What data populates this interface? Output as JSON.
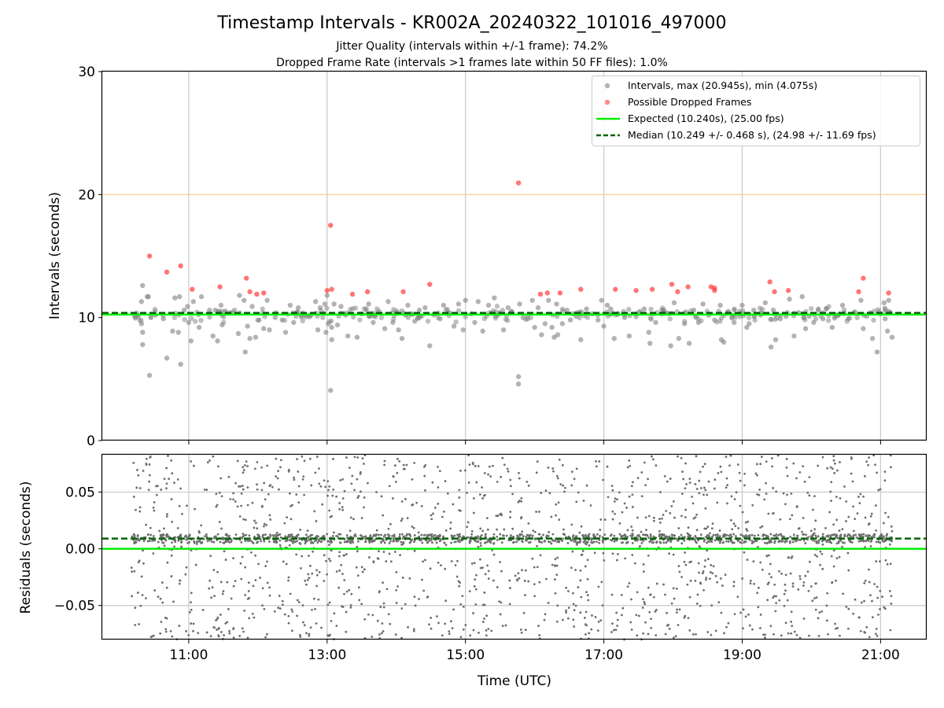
{
  "figure": {
    "title": "Timestamp Intervals - KR002A_20240322_101016_497000",
    "subtitle_line1": "Jitter Quality (intervals within +/-1 frame): 74.2%",
    "subtitle_line2": "Dropped Frame Rate (intervals >1 frames late within 50 FF files): 1.0%"
  },
  "chart_data": [
    {
      "type": "scatter",
      "panel": "intervals",
      "ylabel": "Intervals (seconds)",
      "xlabel": "",
      "xlim": [
        "09:45",
        "21:40"
      ],
      "ylim": [
        0,
        30
      ],
      "yticks": [
        0,
        10,
        20,
        30
      ],
      "ytick_labels": [
        "0",
        "10",
        "20",
        "30"
      ],
      "xticks": [
        "11:00",
        "13:00",
        "15:00",
        "17:00",
        "19:00",
        "21:00"
      ],
      "grid": "vertical",
      "legend": "top-right",
      "colors": {
        "intervals": "#808080",
        "dropped": "#ff3b3b",
        "expected": "#00ee00",
        "median": "#006400",
        "threshold": "#ffcc77"
      },
      "reference_lines": {
        "expected": 10.24,
        "median": 10.249,
        "threshold": 20.0
      },
      "legend_entries": [
        "Intervals, max (20.945s), min (4.075s)",
        "Possible Dropped Frames",
        "Expected (10.240s), (25.00 fps)",
        "Median (10.249 +/- 0.468 s), (24.98 +/- 11.69 fps)"
      ],
      "series": [
        {
          "name": "Intervals, max (20.945s), min (4.075s)",
          "points": [
            [
              "10:20",
              12.6
            ],
            [
              "10:19",
              11.3
            ],
            [
              "10:19",
              9.5
            ],
            [
              "10:20",
              8.8
            ],
            [
              "10:20",
              7.8
            ],
            [
              "10:24",
              11.7
            ],
            [
              "10:25",
              11.7
            ],
            [
              "10:26",
              5.3
            ],
            [
              "10:31",
              10.2
            ],
            [
              "10:38",
              9.9
            ],
            [
              "10:41",
              6.7
            ],
            [
              "10:46",
              8.9
            ],
            [
              "10:48",
              11.6
            ],
            [
              "10:51",
              8.8
            ],
            [
              "10:52",
              11.7
            ],
            [
              "10:53",
              6.2
            ],
            [
              "10:56",
              10.6
            ],
            [
              "10:59",
              10.9
            ],
            [
              "11:00",
              9.6
            ],
            [
              "11:02",
              8.1
            ],
            [
              "11:04",
              11.3
            ],
            [
              "11:09",
              9.2
            ],
            [
              "11:11",
              11.7
            ],
            [
              "11:18",
              10.6
            ],
            [
              "11:21",
              8.5
            ],
            [
              "11:23",
              10.6
            ],
            [
              "11:25",
              8.1
            ],
            [
              "11:28",
              11.0
            ],
            [
              "11:29",
              9.4
            ],
            [
              "11:36",
              10.4
            ],
            [
              "11:43",
              8.7
            ],
            [
              "11:44",
              11.8
            ],
            [
              "11:48",
              11.4
            ],
            [
              "11:49",
              7.2
            ],
            [
              "11:51",
              9.3
            ],
            [
              "11:53",
              8.3
            ],
            [
              "11:55",
              10.9
            ],
            [
              "11:58",
              8.4
            ],
            [
              "12:01",
              9.8
            ],
            [
              "12:05",
              9.1
            ],
            [
              "12:08",
              11.4
            ],
            [
              "12:10",
              9.0
            ],
            [
              "12:15",
              10.0
            ],
            [
              "12:21",
              9.8
            ],
            [
              "12:24",
              8.8
            ],
            [
              "12:28",
              11.0
            ],
            [
              "12:31",
              9.6
            ],
            [
              "12:35",
              10.8
            ],
            [
              "12:41",
              10.2
            ],
            [
              "12:46",
              10.2
            ],
            [
              "12:50",
              11.3
            ],
            [
              "12:52",
              9.0
            ],
            [
              "12:54",
              10.8
            ],
            [
              "12:58",
              11.1
            ],
            [
              "12:59",
              8.8
            ],
            [
              "13:00",
              11.8
            ],
            [
              "13:01",
              9.5
            ],
            [
              "13:03",
              4.075
            ],
            [
              "13:04",
              8.2
            ],
            [
              "13:04",
              9.2
            ],
            [
              "13:06",
              11.1
            ],
            [
              "13:09",
              9.4
            ],
            [
              "13:12",
              10.9
            ],
            [
              "13:16",
              10.2
            ],
            [
              "13:18",
              8.5
            ],
            [
              "13:26",
              8.4
            ],
            [
              "13:30",
              10.3
            ],
            [
              "13:34",
              10.7
            ],
            [
              "13:36",
              11.1
            ],
            [
              "13:40",
              9.6
            ],
            [
              "13:45",
              10.5
            ],
            [
              "13:50",
              9.1
            ],
            [
              "13:53",
              11.3
            ],
            [
              "13:57",
              9.6
            ],
            [
              "14:00",
              10.4
            ],
            [
              "14:02",
              9.0
            ],
            [
              "14:05",
              8.3
            ],
            [
              "14:08",
              10.2
            ],
            [
              "14:10",
              11.0
            ],
            [
              "14:13",
              10.3
            ],
            [
              "14:16",
              9.7
            ],
            [
              "14:20",
              10.6
            ],
            [
              "14:25",
              10.8
            ],
            [
              "14:29",
              7.7
            ],
            [
              "14:33",
              10.3
            ],
            [
              "14:38",
              9.9
            ],
            [
              "14:41",
              11.0
            ],
            [
              "14:45",
              10.4
            ],
            [
              "14:50",
              9.3
            ],
            [
              "14:54",
              11.1
            ],
            [
              "14:58",
              9.0
            ],
            [
              "15:00",
              11.4
            ],
            [
              "15:05",
              10.3
            ],
            [
              "15:08",
              9.6
            ],
            [
              "15:11",
              11.3
            ],
            [
              "15:15",
              8.9
            ],
            [
              "15:20",
              11.0
            ],
            [
              "15:25",
              11.6
            ],
            [
              "15:28",
              10.2
            ],
            [
              "15:33",
              9.0
            ],
            [
              "15:37",
              10.8
            ],
            [
              "15:40",
              10.5
            ],
            [
              "15:46",
              5.2
            ],
            [
              "15:46",
              4.6
            ],
            [
              "15:47",
              11.1
            ],
            [
              "15:50",
              10.0
            ],
            [
              "15:54",
              9.9
            ],
            [
              "15:58",
              11.4
            ],
            [
              "16:00",
              9.2
            ],
            [
              "16:03",
              10.8
            ],
            [
              "16:06",
              8.6
            ],
            [
              "16:09",
              9.5
            ],
            [
              "16:12",
              11.4
            ],
            [
              "16:15",
              9.2
            ],
            [
              "16:17",
              8.4
            ],
            [
              "16:19",
              11.1
            ],
            [
              "16:20",
              8.6
            ],
            [
              "16:24",
              9.5
            ],
            [
              "16:28",
              10.6
            ],
            [
              "16:31",
              9.8
            ],
            [
              "16:36",
              10.1
            ],
            [
              "16:40",
              8.2
            ],
            [
              "16:45",
              10.7
            ],
            [
              "16:50",
              10.3
            ],
            [
              "16:55",
              9.8
            ],
            [
              "16:58",
              11.4
            ],
            [
              "17:00",
              9.3
            ],
            [
              "17:03",
              11.0
            ],
            [
              "17:06",
              10.7
            ],
            [
              "17:09",
              8.3
            ],
            [
              "17:12",
              10.3
            ],
            [
              "17:18",
              10.0
            ],
            [
              "17:22",
              8.5
            ],
            [
              "17:28",
              10.3
            ],
            [
              "17:35",
              10.7
            ],
            [
              "17:39",
              8.8
            ],
            [
              "17:40",
              7.9
            ],
            [
              "17:45",
              9.6
            ],
            [
              "17:52",
              10.6
            ],
            [
              "17:58",
              7.7
            ],
            [
              "18:01",
              11.2
            ],
            [
              "18:05",
              8.3
            ],
            [
              "18:10",
              9.5
            ],
            [
              "18:14",
              7.9
            ],
            [
              "18:18",
              10.6
            ],
            [
              "18:22",
              9.6
            ],
            [
              "18:26",
              11.1
            ],
            [
              "18:31",
              10.2
            ],
            [
              "18:36",
              9.8
            ],
            [
              "18:41",
              11.0
            ],
            [
              "18:42",
              8.2
            ],
            [
              "18:44",
              8.0
            ],
            [
              "18:48",
              10.5
            ],
            [
              "18:53",
              9.6
            ],
            [
              "18:58",
              10.3
            ],
            [
              "19:00",
              11.0
            ],
            [
              "19:04",
              9.2
            ],
            [
              "19:06",
              9.5
            ],
            [
              "19:10",
              10.6
            ],
            [
              "19:16",
              10.2
            ],
            [
              "19:20",
              11.2
            ],
            [
              "19:25",
              7.6
            ],
            [
              "19:27",
              10.6
            ],
            [
              "19:29",
              8.2
            ],
            [
              "19:33",
              9.9
            ],
            [
              "19:38",
              10.1
            ],
            [
              "19:41",
              11.5
            ],
            [
              "19:45",
              8.5
            ],
            [
              "19:49",
              10.4
            ],
            [
              "19:52",
              11.7
            ],
            [
              "19:55",
              9.1
            ],
            [
              "19:58",
              10.1
            ],
            [
              "20:02",
              9.6
            ],
            [
              "20:06",
              10.7
            ],
            [
              "20:10",
              9.9
            ],
            [
              "20:13",
              10.7
            ],
            [
              "20:18",
              9.2
            ],
            [
              "20:23",
              10.2
            ],
            [
              "20:27",
              11.0
            ],
            [
              "20:32",
              9.9
            ],
            [
              "20:37",
              10.4
            ],
            [
              "20:43",
              11.4
            ],
            [
              "20:45",
              9.1
            ],
            [
              "20:48",
              10.1
            ],
            [
              "20:53",
              8.3
            ],
            [
              "20:57",
              7.2
            ],
            [
              "21:00",
              10.3
            ],
            [
              "21:03",
              11.2
            ],
            [
              "21:04",
              9.9
            ],
            [
              "21:06",
              8.9
            ],
            [
              "21:07",
              11.4
            ],
            [
              "21:08",
              10.4
            ],
            [
              "21:10",
              8.4
            ]
          ]
        },
        {
          "name": "Possible Dropped Frames",
          "points": [
            [
              "10:26",
              15.0
            ],
            [
              "10:41",
              13.7
            ],
            [
              "10:53",
              14.2
            ],
            [
              "11:03",
              12.3
            ],
            [
              "11:27",
              12.5
            ],
            [
              "11:50",
              13.2
            ],
            [
              "11:53",
              12.1
            ],
            [
              "11:59",
              11.9
            ],
            [
              "12:05",
              12.0
            ],
            [
              "13:00",
              12.2
            ],
            [
              "13:03",
              17.5
            ],
            [
              "13:04",
              12.3
            ],
            [
              "13:22",
              11.9
            ],
            [
              "13:35",
              12.1
            ],
            [
              "14:06",
              12.1
            ],
            [
              "14:29",
              12.7
            ],
            [
              "15:46",
              20.945
            ],
            [
              "16:05",
              11.9
            ],
            [
              "16:11",
              12.0
            ],
            [
              "16:22",
              12.0
            ],
            [
              "16:40",
              12.3
            ],
            [
              "17:10",
              12.3
            ],
            [
              "17:28",
              12.2
            ],
            [
              "17:42",
              12.3
            ],
            [
              "17:59",
              12.7
            ],
            [
              "18:04",
              12.1
            ],
            [
              "18:13",
              12.5
            ],
            [
              "18:33",
              12.5
            ],
            [
              "18:36",
              12.4
            ],
            [
              "18:36",
              12.2
            ],
            [
              "19:24",
              12.9
            ],
            [
              "19:28",
              12.1
            ],
            [
              "19:40",
              12.2
            ],
            [
              "20:41",
              12.1
            ],
            [
              "20:45",
              13.2
            ],
            [
              "21:07",
              12.0
            ]
          ]
        }
      ]
    },
    {
      "type": "scatter",
      "panel": "residuals",
      "ylabel": "Residuals (seconds)",
      "xlabel": "Time (UTC)",
      "xlim": [
        "09:45",
        "21:40"
      ],
      "ylim": [
        -0.08,
        0.083
      ],
      "yticks": [
        -0.05,
        0.0,
        0.05
      ],
      "ytick_labels": [
        "−0.05",
        "0.00",
        "0.05"
      ],
      "xticks": [
        "11:00",
        "13:00",
        "15:00",
        "17:00",
        "19:00",
        "21:00"
      ],
      "xtick_labels": [
        "11:00",
        "13:00",
        "15:00",
        "17:00",
        "19:00",
        "21:00"
      ],
      "grid": "both",
      "reference_lines": {
        "expected": 0.0,
        "median": 0.009
      },
      "series": [
        {
          "name": "Residuals",
          "x_range": [
            "10:10",
            "21:10"
          ],
          "point_count": 2600,
          "band_center": 0.009,
          "band_halfwidth": 0.004,
          "spread_range": [
            -0.08,
            0.083
          ],
          "color": "#6e6e6e"
        }
      ]
    }
  ]
}
